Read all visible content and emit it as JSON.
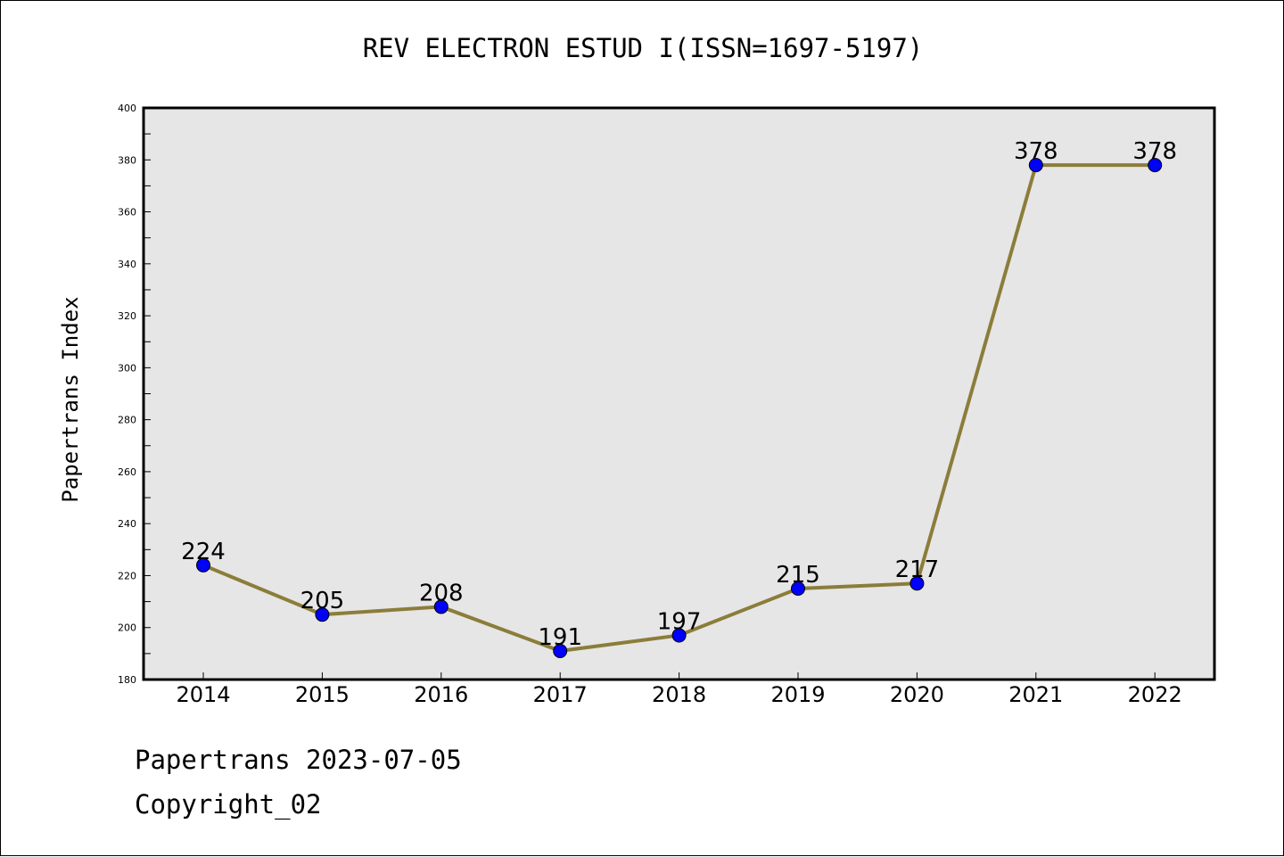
{
  "chart_data": {
    "type": "line",
    "title": "REV ELECTRON ESTUD I(ISSN=1697-5197)",
    "ylabel": "Papertrans Index",
    "xlabel": "",
    "x": [
      "2014",
      "2015",
      "2016",
      "2017",
      "2018",
      "2019",
      "2020",
      "2021",
      "2022"
    ],
    "series": [
      {
        "values": [
          224,
          205,
          208,
          191,
          197,
          215,
          217,
          378,
          378
        ]
      }
    ],
    "data_labels": [
      "224",
      "205",
      "208",
      "191",
      "197",
      "215",
      "217",
      "378",
      "378"
    ],
    "ylim": [
      180,
      400
    ],
    "yticks": [
      "180",
      "200",
      "220",
      "240",
      "260",
      "280",
      "300",
      "320",
      "340",
      "360",
      "380",
      "400"
    ],
    "grid": false,
    "legend": "none",
    "line_color": "#8b7d3a",
    "marker_color": "#0000ff",
    "plot_background": "#e6e6e6"
  },
  "footer": {
    "date_line": "Papertrans 2023-07-05",
    "copyright": "Copyright_02"
  }
}
